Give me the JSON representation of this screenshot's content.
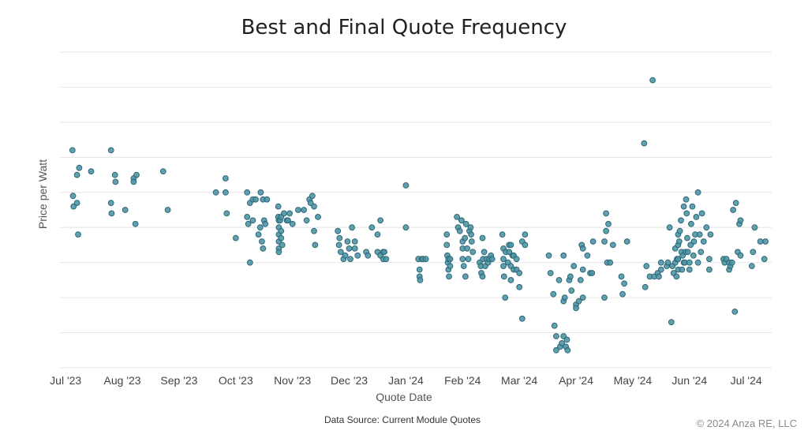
{
  "chart_data": {
    "type": "scatter",
    "title": "Best and Final Quote Frequency",
    "xlabel": "Quote Date",
    "ylabel": "Price per Watt",
    "x_ticks": [
      "Jul '23",
      "Aug '23",
      "Sep '23",
      "Oct '23",
      "Nov '23",
      "Dec '23",
      "Jan '24",
      "Feb '24",
      "Mar '24",
      "Apr '24",
      "May '24",
      "Jun '24",
      "Jul '24"
    ],
    "x_range": [
      -0.1,
      12.45
    ],
    "y_range": [
      0,
      9
    ],
    "y_tick_labels_shown": false,
    "grid": "horizontal",
    "legend": "none",
    "source": "Data Source: Current Module Quotes",
    "copyright": "© 2024 Anza RE, LLC",
    "marker_color": "#4b93a4",
    "points": [
      [
        0.12,
        6.2
      ],
      [
        0.13,
        4.9
      ],
      [
        0.14,
        4.6
      ],
      [
        0.2,
        5.5
      ],
      [
        0.2,
        4.7
      ],
      [
        0.22,
        3.8
      ],
      [
        0.24,
        5.7
      ],
      [
        0.45,
        5.6
      ],
      [
        0.8,
        6.2
      ],
      [
        0.8,
        4.7
      ],
      [
        0.81,
        4.4
      ],
      [
        0.87,
        5.5
      ],
      [
        0.88,
        5.3
      ],
      [
        1.05,
        4.5
      ],
      [
        1.2,
        5.4
      ],
      [
        1.2,
        5.3
      ],
      [
        1.23,
        4.1
      ],
      [
        1.25,
        5.5
      ],
      [
        1.72,
        5.6
      ],
      [
        1.8,
        4.5
      ],
      [
        2.65,
        5.0
      ],
      [
        2.82,
        5.4
      ],
      [
        2.82,
        5.0
      ],
      [
        2.84,
        4.4
      ],
      [
        3.0,
        3.7
      ],
      [
        3.2,
        5.0
      ],
      [
        3.2,
        4.3
      ],
      [
        3.22,
        4.1
      ],
      [
        3.25,
        4.7
      ],
      [
        3.25,
        3.0
      ],
      [
        3.3,
        4.8
      ],
      [
        3.3,
        4.2
      ],
      [
        3.35,
        4.8
      ],
      [
        3.4,
        3.8
      ],
      [
        3.43,
        4.0
      ],
      [
        3.44,
        5.0
      ],
      [
        3.46,
        3.6
      ],
      [
        3.48,
        4.8
      ],
      [
        3.48,
        3.4
      ],
      [
        3.5,
        4.2
      ],
      [
        3.52,
        4.1
      ],
      [
        3.55,
        4.8
      ],
      [
        3.75,
        4.6
      ],
      [
        3.75,
        4.3
      ],
      [
        3.76,
        4.2
      ],
      [
        3.76,
        4.0
      ],
      [
        3.76,
        3.8
      ],
      [
        3.76,
        3.6
      ],
      [
        3.76,
        3.4
      ],
      [
        3.76,
        3.3
      ],
      [
        3.78,
        4.2
      ],
      [
        3.8,
        4.3
      ],
      [
        3.8,
        3.9
      ],
      [
        3.8,
        3.7
      ],
      [
        3.82,
        3.5
      ],
      [
        3.85,
        4.4
      ],
      [
        3.9,
        4.2
      ],
      [
        3.92,
        4.2
      ],
      [
        3.95,
        4.4
      ],
      [
        4.0,
        4.1
      ],
      [
        4.1,
        4.5
      ],
      [
        4.2,
        4.5
      ],
      [
        4.25,
        4.2
      ],
      [
        4.3,
        4.8
      ],
      [
        4.32,
        4.7
      ],
      [
        4.35,
        4.9
      ],
      [
        4.38,
        4.6
      ],
      [
        4.38,
        3.9
      ],
      [
        4.4,
        3.5
      ],
      [
        4.45,
        4.3
      ],
      [
        4.8,
        3.9
      ],
      [
        4.82,
        3.5
      ],
      [
        4.83,
        3.7
      ],
      [
        4.85,
        3.3
      ],
      [
        4.9,
        3.1
      ],
      [
        4.93,
        3.2
      ],
      [
        4.97,
        3.6
      ],
      [
        5.0,
        3.4
      ],
      [
        5.02,
        3.1
      ],
      [
        5.05,
        4.0
      ],
      [
        5.1,
        3.6
      ],
      [
        5.1,
        3.4
      ],
      [
        5.15,
        3.2
      ],
      [
        5.3,
        3.3
      ],
      [
        5.33,
        3.2
      ],
      [
        5.4,
        4.0
      ],
      [
        5.5,
        3.8
      ],
      [
        5.5,
        3.3
      ],
      [
        5.55,
        4.2
      ],
      [
        5.55,
        3.2
      ],
      [
        5.6,
        3.3
      ],
      [
        5.6,
        3.1
      ],
      [
        5.62,
        3.3
      ],
      [
        5.65,
        3.1
      ],
      [
        6.0,
        5.2
      ],
      [
        6.0,
        4.0
      ],
      [
        6.22,
        3.1
      ],
      [
        6.24,
        2.8
      ],
      [
        6.24,
        2.6
      ],
      [
        6.25,
        2.5
      ],
      [
        6.28,
        3.1
      ],
      [
        6.3,
        3.1
      ],
      [
        6.35,
        3.1
      ],
      [
        6.72,
        3.8
      ],
      [
        6.72,
        3.5
      ],
      [
        6.73,
        3.2
      ],
      [
        6.74,
        3.0
      ],
      [
        6.75,
        3.1
      ],
      [
        6.75,
        2.8
      ],
      [
        6.76,
        2.6
      ],
      [
        6.78,
        2.9
      ],
      [
        6.78,
        3.1
      ],
      [
        6.9,
        4.3
      ],
      [
        6.92,
        4.0
      ],
      [
        6.95,
        3.9
      ],
      [
        6.98,
        4.2
      ],
      [
        7.0,
        3.6
      ],
      [
        7.0,
        3.4
      ],
      [
        7.0,
        3.1
      ],
      [
        7.02,
        2.9
      ],
      [
        7.04,
        3.7
      ],
      [
        7.05,
        2.6
      ],
      [
        7.06,
        4.1
      ],
      [
        7.08,
        3.4
      ],
      [
        7.1,
        3.1
      ],
      [
        7.12,
        3.9
      ],
      [
        7.14,
        4.0
      ],
      [
        7.15,
        3.8
      ],
      [
        7.16,
        3.6
      ],
      [
        7.18,
        3.3
      ],
      [
        7.3,
        3.0
      ],
      [
        7.32,
        2.9
      ],
      [
        7.33,
        2.7
      ],
      [
        7.35,
        3.7
      ],
      [
        7.35,
        2.6
      ],
      [
        7.36,
        3.1
      ],
      [
        7.38,
        3.3
      ],
      [
        7.4,
        2.9
      ],
      [
        7.42,
        3.1
      ],
      [
        7.45,
        3.0
      ],
      [
        7.47,
        3.1
      ],
      [
        7.5,
        3.2
      ],
      [
        7.52,
        3.1
      ],
      [
        7.7,
        3.8
      ],
      [
        7.72,
        3.4
      ],
      [
        7.72,
        3.1
      ],
      [
        7.72,
        2.9
      ],
      [
        7.73,
        2.6
      ],
      [
        7.75,
        2.0
      ],
      [
        7.76,
        3.3
      ],
      [
        7.8,
        3.0
      ],
      [
        7.82,
        3.5
      ],
      [
        7.82,
        3.3
      ],
      [
        7.85,
        3.5
      ],
      [
        7.85,
        2.9
      ],
      [
        7.85,
        2.5
      ],
      [
        7.88,
        3.2
      ],
      [
        7.9,
        3.2
      ],
      [
        7.9,
        2.8
      ],
      [
        7.95,
        3.1
      ],
      [
        7.95,
        2.8
      ],
      [
        8.0,
        2.7
      ],
      [
        8.0,
        2.3
      ],
      [
        8.05,
        3.6
      ],
      [
        8.05,
        1.4
      ],
      [
        8.1,
        3.8
      ],
      [
        8.1,
        3.5
      ],
      [
        8.52,
        3.2
      ],
      [
        8.55,
        2.7
      ],
      [
        8.6,
        2.1
      ],
      [
        8.62,
        1.2
      ],
      [
        8.65,
        0.9
      ],
      [
        8.65,
        0.5
      ],
      [
        8.7,
        2.5
      ],
      [
        8.72,
        0.6
      ],
      [
        8.75,
        0.7
      ],
      [
        8.78,
        0.9
      ],
      [
        8.78,
        3.2
      ],
      [
        8.78,
        1.9
      ],
      [
        8.8,
        2.0
      ],
      [
        8.82,
        0.6
      ],
      [
        8.84,
        0.8
      ],
      [
        8.85,
        0.5
      ],
      [
        8.88,
        2.5
      ],
      [
        8.9,
        2.6
      ],
      [
        8.92,
        2.2
      ],
      [
        8.96,
        2.9
      ],
      [
        9.0,
        1.8
      ],
      [
        9.0,
        1.7
      ],
      [
        9.05,
        1.9
      ],
      [
        9.08,
        2.5
      ],
      [
        9.1,
        3.5
      ],
      [
        9.12,
        3.4
      ],
      [
        9.12,
        2.8
      ],
      [
        9.12,
        2.0
      ],
      [
        9.2,
        3.2
      ],
      [
        9.25,
        2.7
      ],
      [
        9.28,
        2.7
      ],
      [
        9.3,
        3.6
      ],
      [
        9.5,
        2.0
      ],
      [
        9.5,
        3.6
      ],
      [
        9.53,
        3.9
      ],
      [
        9.53,
        4.4
      ],
      [
        9.55,
        3.0
      ],
      [
        9.57,
        4.1
      ],
      [
        9.6,
        3.0
      ],
      [
        9.65,
        3.5
      ],
      [
        9.8,
        2.6
      ],
      [
        9.82,
        2.1
      ],
      [
        9.85,
        2.4
      ],
      [
        9.9,
        3.6
      ],
      [
        10.2,
        6.4
      ],
      [
        10.22,
        2.3
      ],
      [
        10.24,
        2.9
      ],
      [
        10.3,
        2.6
      ],
      [
        10.35,
        8.2
      ],
      [
        10.38,
        2.6
      ],
      [
        10.44,
        2.7
      ],
      [
        10.46,
        2.6
      ],
      [
        10.5,
        2.8
      ],
      [
        10.5,
        3.0
      ],
      [
        10.6,
        2.9
      ],
      [
        10.62,
        3.0
      ],
      [
        10.65,
        4.0
      ],
      [
        10.68,
        1.3
      ],
      [
        10.7,
        2.9
      ],
      [
        10.72,
        2.7
      ],
      [
        10.75,
        3.0
      ],
      [
        10.75,
        3.4
      ],
      [
        10.77,
        2.6
      ],
      [
        10.78,
        3.1
      ],
      [
        10.8,
        3.8
      ],
      [
        10.8,
        3.5
      ],
      [
        10.8,
        2.8
      ],
      [
        10.8,
        3.1
      ],
      [
        10.82,
        3.6
      ],
      [
        10.83,
        3.9
      ],
      [
        10.85,
        4.2
      ],
      [
        10.86,
        3.3
      ],
      [
        10.87,
        2.8
      ],
      [
        10.88,
        3.2
      ],
      [
        10.9,
        4.6
      ],
      [
        10.9,
        3.0
      ],
      [
        10.92,
        3.0
      ],
      [
        10.93,
        3.3
      ],
      [
        10.94,
        4.8
      ],
      [
        10.95,
        4.4
      ],
      [
        10.96,
        3.7
      ],
      [
        10.97,
        3.3
      ],
      [
        11.0,
        3.0
      ],
      [
        11.0,
        2.8
      ],
      [
        11.02,
        3.5
      ],
      [
        11.03,
        4.1
      ],
      [
        11.05,
        4.6
      ],
      [
        11.07,
        3.2
      ],
      [
        11.08,
        3.6
      ],
      [
        11.1,
        3.8
      ],
      [
        11.12,
        4.3
      ],
      [
        11.15,
        3.0
      ],
      [
        11.15,
        5.0
      ],
      [
        11.18,
        3.8
      ],
      [
        11.2,
        3.3
      ],
      [
        11.22,
        4.4
      ],
      [
        11.25,
        3.6
      ],
      [
        11.3,
        4.0
      ],
      [
        11.35,
        2.8
      ],
      [
        11.35,
        3.1
      ],
      [
        11.37,
        3.8
      ],
      [
        11.6,
        3.1
      ],
      [
        11.62,
        3.0
      ],
      [
        11.65,
        3.1
      ],
      [
        11.7,
        2.8
      ],
      [
        11.7,
        3.0
      ],
      [
        11.72,
        2.9
      ],
      [
        11.75,
        3.0
      ],
      [
        11.77,
        4.5
      ],
      [
        11.8,
        1.6
      ],
      [
        11.82,
        4.7
      ],
      [
        11.85,
        3.3
      ],
      [
        11.88,
        4.1
      ],
      [
        11.9,
        4.2
      ],
      [
        11.9,
        3.2
      ],
      [
        12.1,
        2.9
      ],
      [
        12.12,
        3.3
      ],
      [
        12.15,
        4.0
      ],
      [
        12.25,
        3.6
      ],
      [
        12.32,
        3.1
      ],
      [
        12.34,
        3.6
      ]
    ]
  }
}
